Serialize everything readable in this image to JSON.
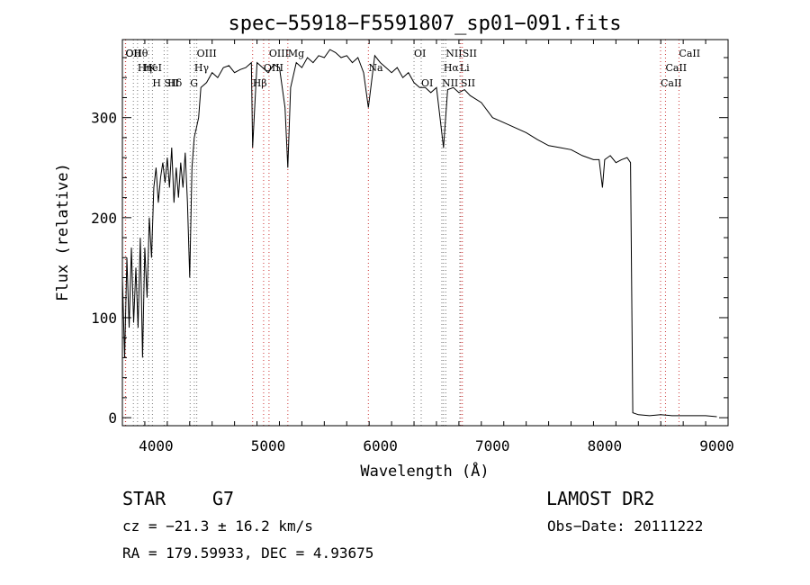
{
  "chart_data": {
    "type": "line",
    "title": "spec−55918−F5591807_sp01−091.fits",
    "xlabel": "Wavelength (Å)",
    "ylabel": "Flux (relative)",
    "xlim": [
      3700,
      9100
    ],
    "ylim": [
      -8,
      378
    ],
    "x_ticks": [
      4000,
      5000,
      6000,
      7000,
      8000,
      9000
    ],
    "y_ticks": [
      0,
      100,
      200,
      300
    ],
    "grid": false,
    "series": [
      {
        "x": [
          3700,
          3720,
          3740,
          3760,
          3780,
          3800,
          3820,
          3840,
          3860,
          3880,
          3900,
          3920,
          3940,
          3960,
          3980,
          4000,
          4020,
          4040,
          4060,
          4080,
          4100,
          4120,
          4140,
          4160,
          4180,
          4200,
          4220,
          4240,
          4260,
          4280,
          4300,
          4320,
          4340,
          4360,
          4380,
          4400,
          4450,
          4500,
          4550,
          4600,
          4650,
          4700,
          4750,
          4800,
          4850,
          4861,
          4900,
          4950,
          5000,
          5050,
          5100,
          5150,
          5175,
          5200,
          5250,
          5300,
          5350,
          5400,
          5450,
          5500,
          5550,
          5600,
          5650,
          5700,
          5750,
          5800,
          5850,
          5893,
          5950,
          6000,
          6050,
          6100,
          6150,
          6200,
          6250,
          6300,
          6350,
          6400,
          6450,
          6500,
          6563,
          6600,
          6650,
          6700,
          6750,
          6800,
          6900,
          7000,
          7100,
          7200,
          7300,
          7400,
          7500,
          7600,
          7700,
          7800,
          7900,
          7950,
          7980,
          8000,
          8050,
          8100,
          8150,
          8200,
          8230,
          8250,
          8300,
          8400,
          8500,
          8600,
          8700,
          8800,
          8900,
          9000
        ],
        "y": [
          140,
          60,
          160,
          90,
          170,
          95,
          150,
          90,
          180,
          60,
          170,
          120,
          200,
          160,
          230,
          250,
          215,
          240,
          255,
          235,
          260,
          230,
          270,
          215,
          250,
          220,
          255,
          230,
          265,
          215,
          140,
          250,
          280,
          290,
          300,
          330,
          335,
          345,
          340,
          350,
          352,
          345,
          348,
          350,
          355,
          270,
          355,
          350,
          345,
          353,
          350,
          310,
          250,
          330,
          355,
          350,
          360,
          355,
          362,
          360,
          368,
          365,
          360,
          362,
          355,
          360,
          345,
          310,
          362,
          355,
          350,
          345,
          350,
          340,
          345,
          335,
          330,
          330,
          325,
          330,
          270,
          328,
          330,
          325,
          328,
          322,
          315,
          300,
          295,
          290,
          285,
          278,
          272,
          270,
          268,
          262,
          258,
          258,
          230,
          258,
          262,
          255,
          258,
          260,
          255,
          5,
          3,
          2,
          3,
          2,
          2,
          2,
          2,
          1
        ]
      }
    ],
    "lines": [
      {
        "label": "Hθ",
        "wl": 3798
      },
      {
        "label": "K",
        "wl": 3934
      },
      {
        "label": "Hδ",
        "wl": 4102
      },
      {
        "label": "OII",
        "wl": 3727
      },
      {
        "label": "HeI",
        "wl": 3889
      },
      {
        "label": "SII",
        "wl": 4072
      },
      {
        "label": "OII",
        "wl": 3729
      },
      {
        "label": "Hη",
        "wl": 3835
      },
      {
        "label": "H",
        "wl": 3968
      },
      {
        "label": "OIII",
        "wl": 4363
      },
      {
        "label": "Hγ",
        "wl": 4341
      },
      {
        "label": "G",
        "wl": 4304
      },
      {
        "label": "OIII",
        "wl": 5007
      },
      {
        "label": "OIII",
        "wl": 4959
      },
      {
        "label": "Hβ",
        "wl": 4861
      },
      {
        "label": "Mg",
        "wl": 5175
      },
      {
        "label": "Na",
        "wl": 5893
      },
      {
        "label": "OI",
        "wl": 6364
      },
      {
        "label": "OI",
        "wl": 6300
      },
      {
        "label": "Hα",
        "wl": 6563
      },
      {
        "label": "SII",
        "wl": 6716
      },
      {
        "label": "NII",
        "wl": 6583
      },
      {
        "label": "Li",
        "wl": 6708
      },
      {
        "label": "NII",
        "wl": 6548
      },
      {
        "label": "SII",
        "wl": 6731
      },
      {
        "label": "CaII",
        "wl": 8542
      },
      {
        "label": "CaII",
        "wl": 8498
      },
      {
        "label": "CaII",
        "wl": 8662
      }
    ]
  },
  "info": {
    "object_type": "STAR",
    "subclass": "G7",
    "survey": "LAMOST DR2",
    "cz": "cz = −21.3 ± 16.2 km/s",
    "obs_date": "Obs−Date: 20111222",
    "coords": "RA = 179.59933, DEC =   4.93675"
  }
}
